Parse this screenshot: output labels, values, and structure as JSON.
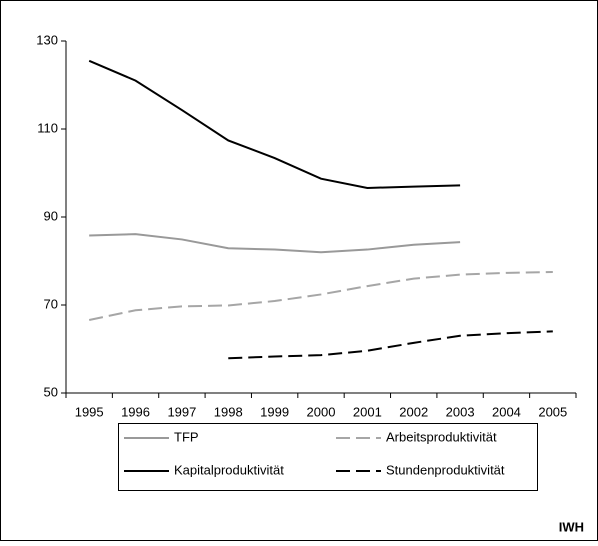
{
  "chart_data": {
    "type": "line",
    "categories": [
      "1995",
      "1996",
      "1997",
      "1998",
      "1999",
      "2000",
      "2001",
      "2002",
      "2003",
      "2004",
      "2005"
    ],
    "series": [
      {
        "name": "TFP",
        "color": "#999999",
        "dash": "solid",
        "values": [
          85.8,
          86.1,
          84.9,
          82.9,
          82.6,
          82.0,
          82.6,
          83.7,
          84.3,
          null,
          null
        ]
      },
      {
        "name": "Arbeitsproduktivität",
        "color": "#a6a6a6",
        "dash": "dashed",
        "values": [
          66.6,
          68.8,
          69.7,
          69.9,
          70.9,
          72.4,
          74.3,
          76.0,
          76.9,
          77.3,
          77.5
        ]
      },
      {
        "name": "Kapitalproduktivität",
        "color": "#000000",
        "dash": "solid",
        "values": [
          125.5,
          121.0,
          114.3,
          107.4,
          103.4,
          98.7,
          96.6,
          96.9,
          97.2,
          null,
          null
        ]
      },
      {
        "name": "Stundenproduktivität",
        "color": "#000000",
        "dash": "dashed",
        "values": [
          null,
          null,
          null,
          57.9,
          58.3,
          58.6,
          59.6,
          61.4,
          63.0,
          63.6,
          64.0
        ]
      }
    ],
    "ylim": [
      50,
      130
    ],
    "yticks": [
      50,
      70,
      90,
      110,
      130
    ],
    "legend": "bottom",
    "annotation": "IWH"
  }
}
